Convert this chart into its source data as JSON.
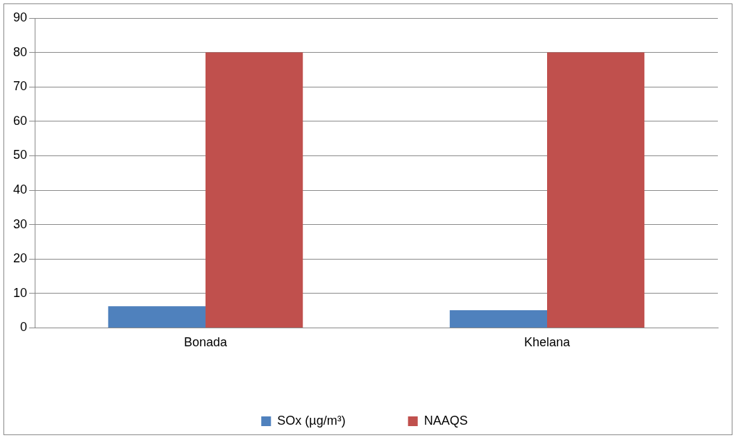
{
  "chart_data": {
    "type": "bar",
    "categories": [
      "Bonada",
      "Khelana"
    ],
    "series": [
      {
        "name": "SOx (µg/m³)",
        "color": "#4f81bd",
        "values": [
          6.3,
          5.1
        ]
      },
      {
        "name": "NAAQS",
        "color": "#c0504d",
        "values": [
          80,
          80
        ]
      }
    ],
    "ylim": [
      0,
      90
    ],
    "yticks": [
      0,
      10,
      20,
      30,
      40,
      50,
      60,
      70,
      80,
      90
    ],
    "grid": "y",
    "legend": "bottom"
  }
}
